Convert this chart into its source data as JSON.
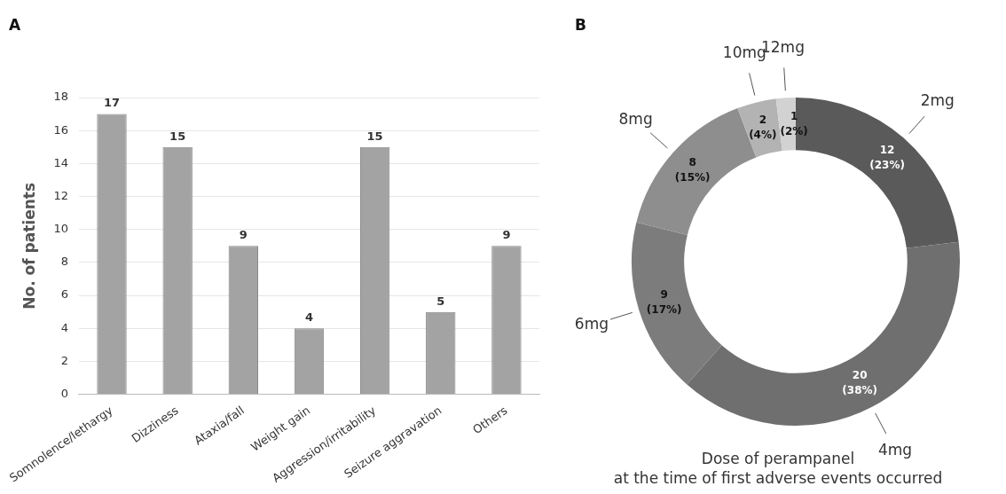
{
  "chart_data": [
    {
      "type": "bar",
      "title": "A",
      "ylabel": "No. of patients",
      "categories": [
        "Somnolence/lethargy",
        "Dizziness",
        "Ataxia/fall",
        "Weight gain",
        "Aggression/irritability",
        "Seizure aggravation",
        "Others"
      ],
      "values": [
        17,
        15,
        9,
        4,
        15,
        5,
        9
      ],
      "color": "#a3a3a3",
      "ylim": [
        0,
        18
      ],
      "yticks": [
        0,
        2,
        4,
        6,
        8,
        10,
        12,
        14,
        16,
        18
      ],
      "grid": "y",
      "data_labels": true
    },
    {
      "type": "donut",
      "title": "B",
      "xlabel": "Dose of perampanel\nat the time of first adverse events occurred",
      "categories": [
        "2mg",
        "4mg",
        "6mg",
        "8mg",
        "10mg",
        "12mg"
      ],
      "values": [
        12,
        20,
        9,
        8,
        2,
        1
      ],
      "colors": [
        "#5a5a5a",
        "#6f6f6f",
        "#7c7c7c",
        "#8e8e8e",
        "#b3b3b3",
        "#d2d2d2"
      ],
      "value_labels": [
        "12\n(23%)",
        "20\n(38%)",
        "9\n(17%)",
        "8\n(15%)",
        "2\n(4%)",
        "1\n(2%)"
      ]
    }
  ]
}
